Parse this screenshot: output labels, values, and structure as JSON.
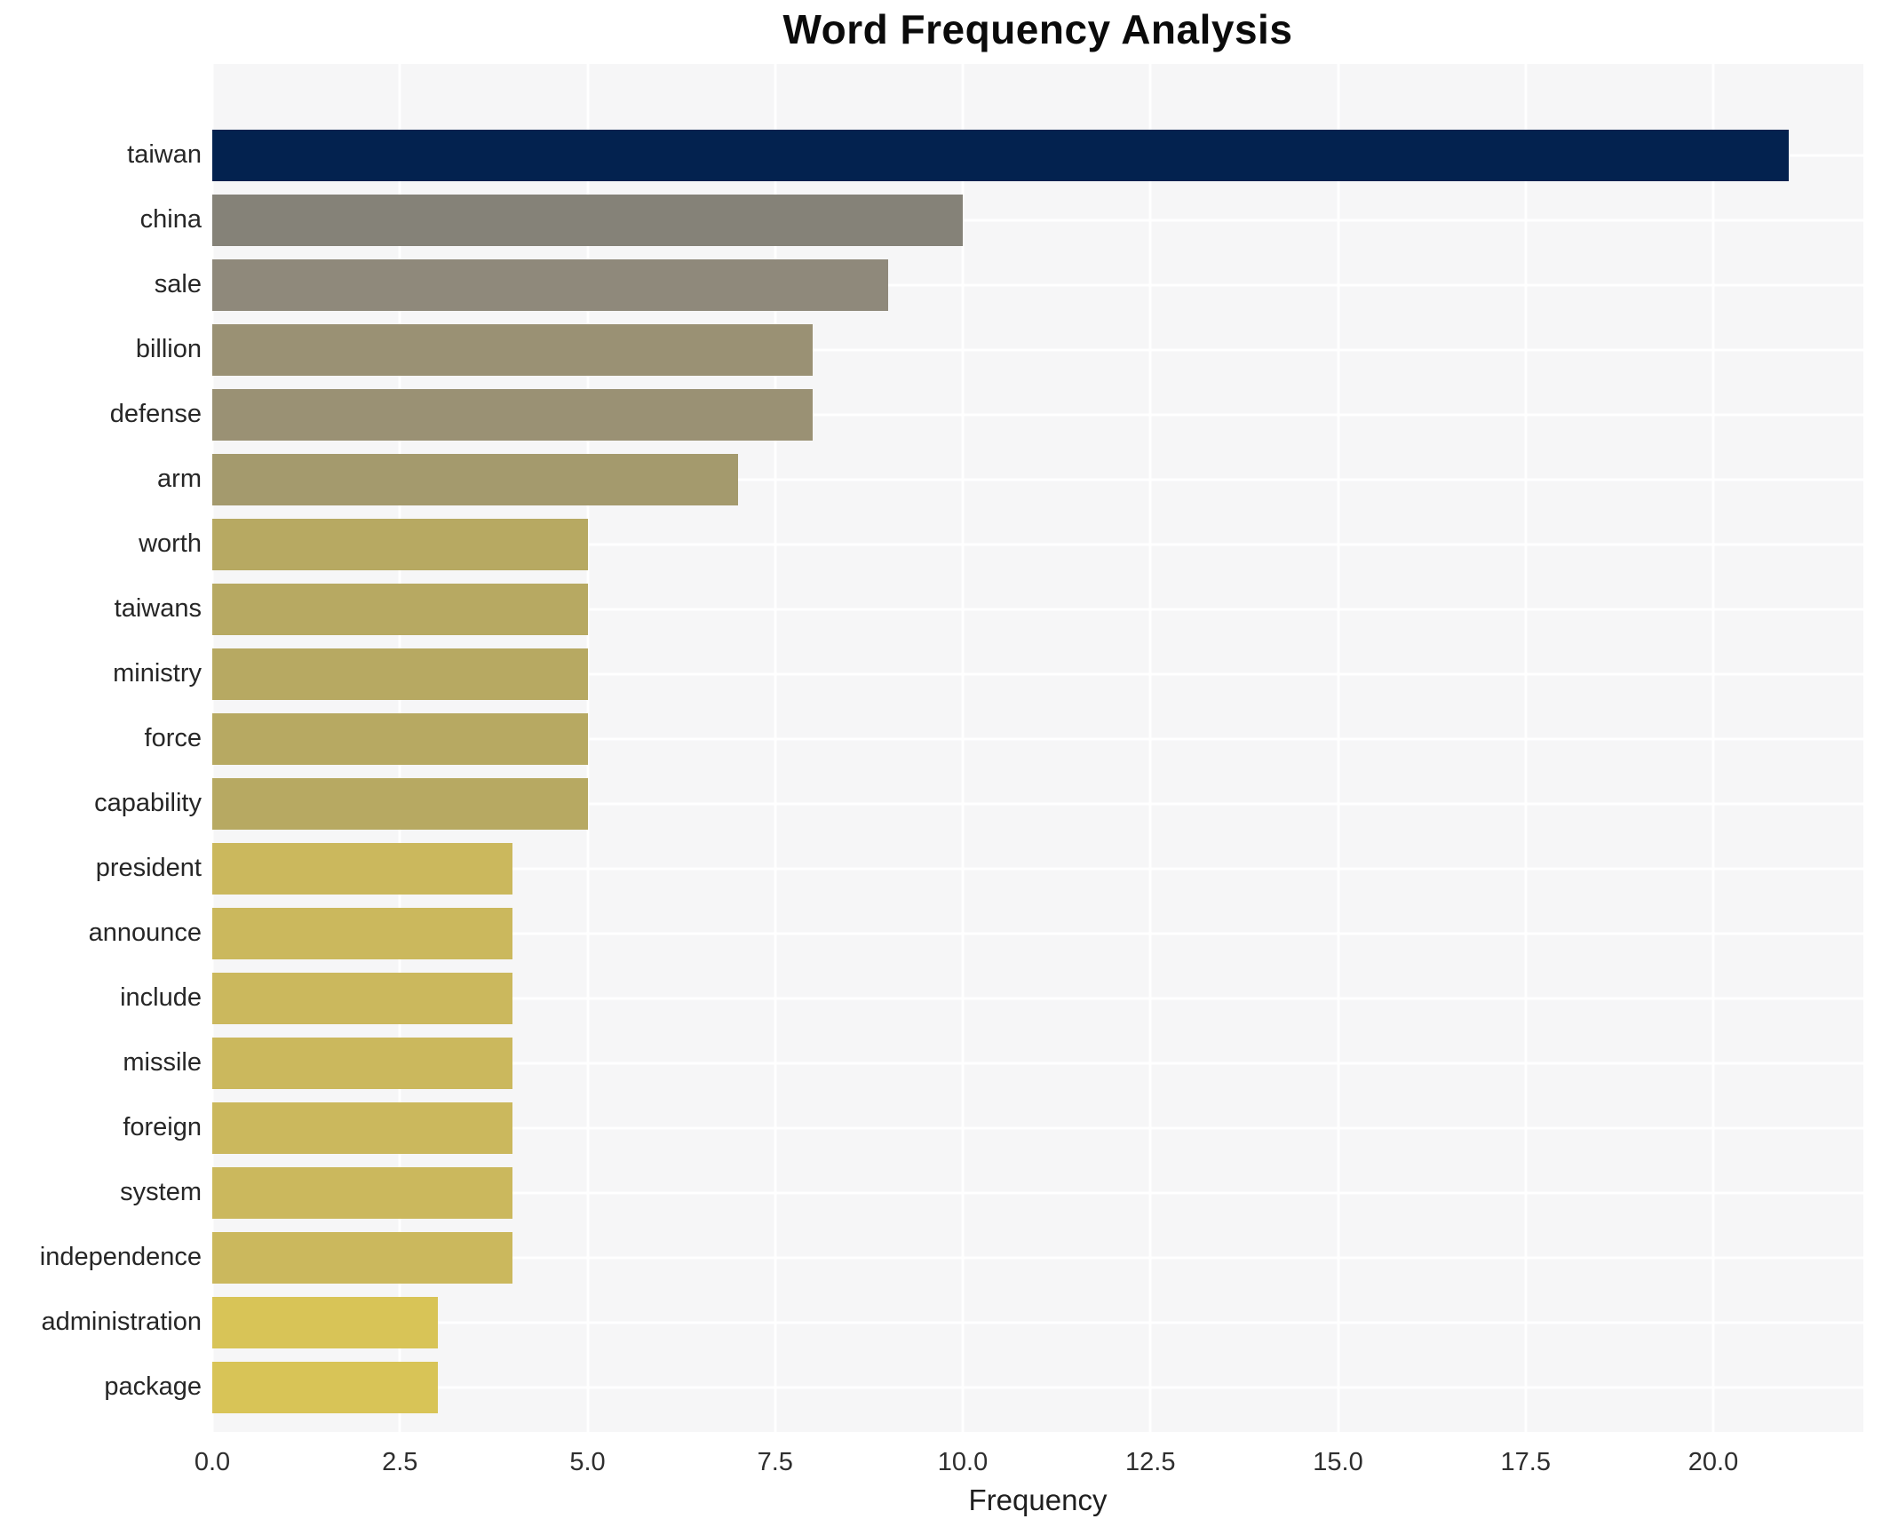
{
  "chart_data": {
    "type": "bar",
    "orientation": "horizontal",
    "title": "Word Frequency Analysis",
    "xlabel": "Frequency",
    "ylabel": "",
    "xlim": [
      0,
      22
    ],
    "grid": true,
    "legend": "none",
    "plot_bg_color": "#f6f6f7",
    "gridline_color": "#ffffff",
    "x_ticks": [
      "0.0",
      "2.5",
      "5.0",
      "7.5",
      "10.0",
      "12.5",
      "15.0",
      "17.5",
      "20.0"
    ],
    "x_tick_values": [
      0,
      2.5,
      5,
      7.5,
      10,
      12.5,
      15,
      17.5,
      20
    ],
    "categories": [
      "taiwan",
      "china",
      "sale",
      "billion",
      "defense",
      "arm",
      "worth",
      "taiwans",
      "ministry",
      "force",
      "capability",
      "president",
      "announce",
      "include",
      "missile",
      "foreign",
      "system",
      "independence",
      "administration",
      "package"
    ],
    "values": [
      21,
      10,
      9,
      8,
      8,
      7,
      5,
      5,
      5,
      5,
      5,
      4,
      4,
      4,
      4,
      4,
      4,
      4,
      3,
      3
    ],
    "bar_colors": [
      "#03224f",
      "#858278",
      "#8f897b",
      "#9a9174",
      "#9a9174",
      "#a49a6d",
      "#b7a962",
      "#b7a962",
      "#b7a962",
      "#b7a962",
      "#b7a962",
      "#cbb85d",
      "#cbb85d",
      "#cbb85d",
      "#cbb85d",
      "#cbb85d",
      "#cbb85d",
      "#cbb85d",
      "#d8c457",
      "#d8c457"
    ]
  }
}
